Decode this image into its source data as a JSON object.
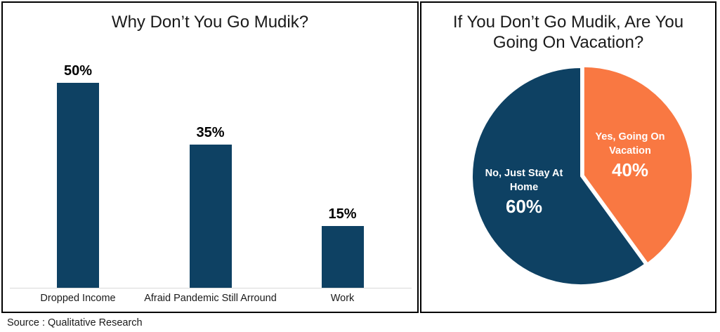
{
  "source_note": "Source : Qualitative Research",
  "chart_data": [
    {
      "type": "bar",
      "title": "Why Don’t You Go Mudik?",
      "categories": [
        "Dropped Income",
        "Afraid Pandemic Still Arround",
        "Work"
      ],
      "values": [
        50,
        35,
        15
      ],
      "value_labels": [
        "50%",
        "35%",
        "15%"
      ],
      "unit": "%",
      "bar_color": "#0E4163",
      "axis_color": "#D9D9D9",
      "ylim": [
        0,
        55
      ],
      "grid": false,
      "legend": "none"
    },
    {
      "type": "pie",
      "title": "If You Don’t Go Mudik, Are You Going On Vacation?",
      "title_lines": [
        "If You Don’t Go Mudik, Are You",
        "Going On Vacation?"
      ],
      "start_angle_deg": 0,
      "direction": "clockwise",
      "label_color": "#FFFFFF",
      "slices": [
        {
          "label": "Yes, Going On Vacation",
          "label_lines": [
            "Yes, Going On",
            "Vacation"
          ],
          "value": 40,
          "value_label": "40%",
          "color": "#F97842",
          "exploded": true
        },
        {
          "label": "No, Just Stay At Home",
          "label_lines": [
            "No, Just Stay At",
            "Home"
          ],
          "value": 60,
          "value_label": "60%",
          "color": "#0E4163",
          "exploded": false
        }
      ]
    }
  ]
}
